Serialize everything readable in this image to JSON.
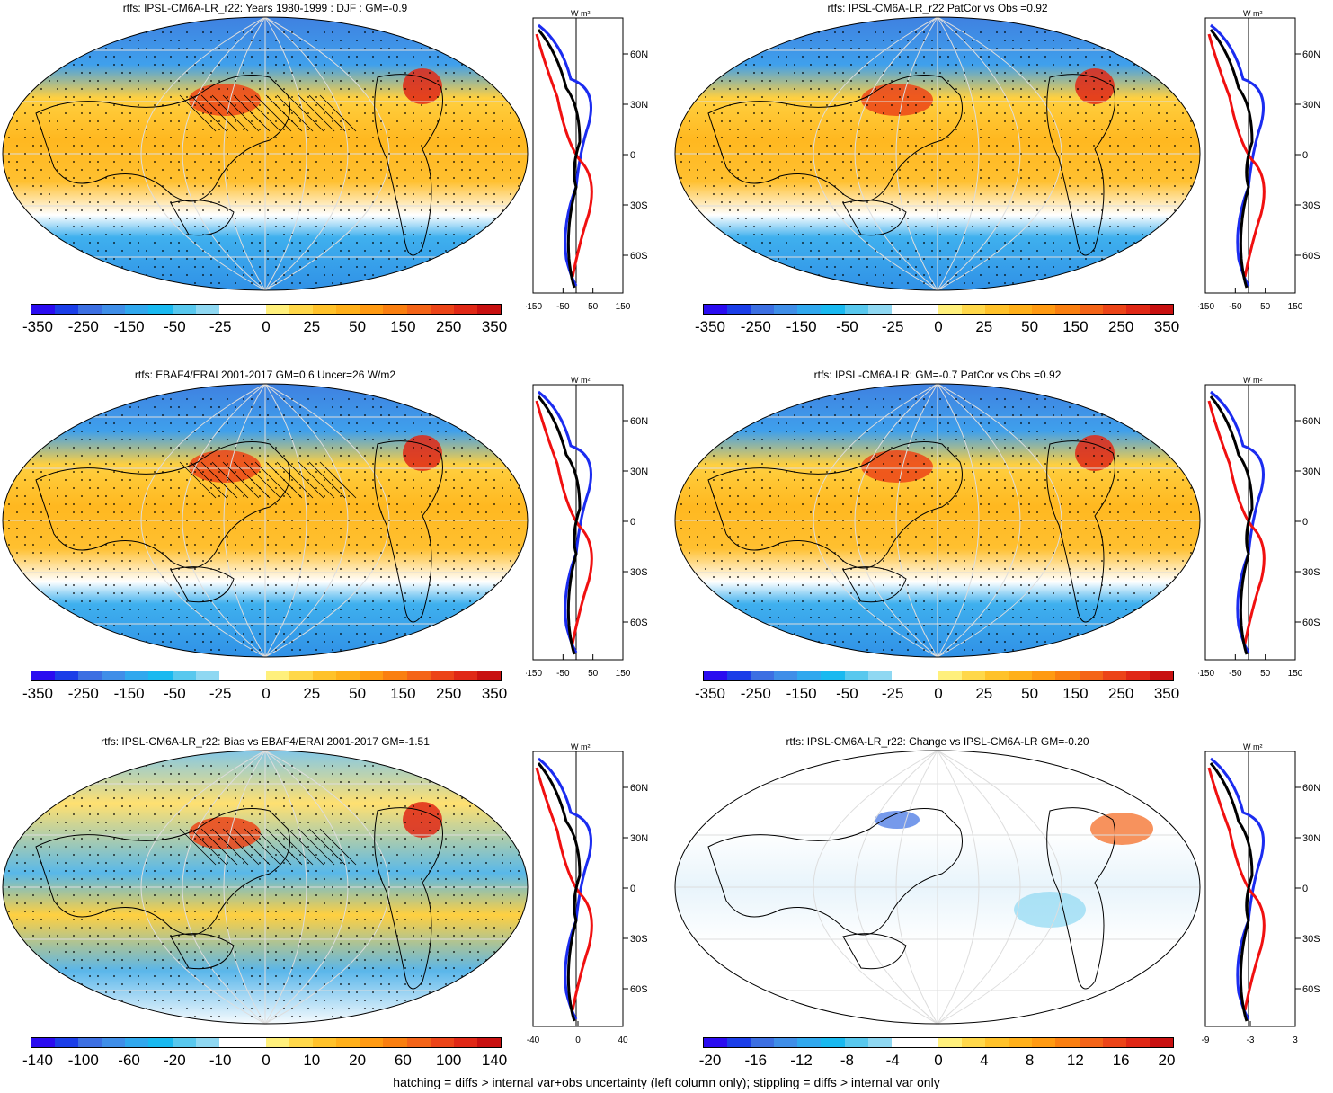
{
  "panels": [
    {
      "id": "top-left",
      "title": "rtfs: IPSL-CM6A-LR_r22: Years 1980-1999 : DJF : GM=-0.9",
      "colorbar_labels": [
        "-350",
        "-250",
        "-150",
        "-50",
        "-25",
        "0",
        "25",
        "50",
        "150",
        "250",
        "350"
      ],
      "zonal_ticks_x": [
        "-150",
        "-50",
        "50",
        "150"
      ],
      "zonal_ticks_y": [
        "60N",
        "30N",
        "0",
        "30S",
        "60S"
      ],
      "zonal_unit": "W m²",
      "hatching": true
    },
    {
      "id": "top-right",
      "title": "rtfs: IPSL-CM6A-LR_r22 PatCor vs Obs =0.92",
      "colorbar_labels": [
        "-350",
        "-250",
        "-150",
        "-50",
        "-25",
        "0",
        "25",
        "50",
        "150",
        "250",
        "350"
      ],
      "zonal_ticks_x": [
        "-150",
        "-50",
        "50",
        "150"
      ],
      "zonal_ticks_y": [
        "60N",
        "30N",
        "0",
        "30S",
        "60S"
      ],
      "zonal_unit": "W m²",
      "hatching": false
    },
    {
      "id": "mid-left",
      "title": "rtfs: EBAF4/ERAI 2001-2017 GM=0.6 Uncer=26 W/m2",
      "colorbar_labels": [
        "-350",
        "-250",
        "-150",
        "-50",
        "-25",
        "0",
        "25",
        "50",
        "150",
        "250",
        "350"
      ],
      "zonal_ticks_x": [
        "-150",
        "-50",
        "50",
        "150"
      ],
      "zonal_ticks_y": [
        "60N",
        "30N",
        "0",
        "30S",
        "60S"
      ],
      "zonal_unit": "W m²",
      "hatching": true
    },
    {
      "id": "mid-right",
      "title": "rtfs: IPSL-CM6A-LR: GM=-0.7 PatCor vs Obs =0.92",
      "colorbar_labels": [
        "-350",
        "-250",
        "-150",
        "-50",
        "-25",
        "0",
        "25",
        "50",
        "150",
        "250",
        "350"
      ],
      "zonal_ticks_x": [
        "-150",
        "-50",
        "50",
        "150"
      ],
      "zonal_ticks_y": [
        "60N",
        "30N",
        "0",
        "30S",
        "60S"
      ],
      "zonal_unit": "W m²",
      "hatching": false
    },
    {
      "id": "bottom-left",
      "title": "rtfs: IPSL-CM6A-LR_r22: Bias vs EBAF4/ERAI 2001-2017 GM=-1.51",
      "colorbar_labels": [
        "-140",
        "-100",
        "-60",
        "-20",
        "-10",
        "0",
        "10",
        "20",
        "60",
        "100",
        "140"
      ],
      "zonal_ticks_x": [
        "-40",
        "0",
        "40"
      ],
      "zonal_ticks_y": [
        "60N",
        "30N",
        "0",
        "30S",
        "60S"
      ],
      "zonal_unit": "W m²",
      "hatching": true
    },
    {
      "id": "bottom-right",
      "title": "rtfs: IPSL-CM6A-LR_r22: Change vs IPSL-CM6A-LR GM=-0.20",
      "colorbar_labels": [
        "-20",
        "-16",
        "-12",
        "-8",
        "-4",
        "0",
        "4",
        "8",
        "12",
        "16",
        "20"
      ],
      "zonal_ticks_x": [
        "-9",
        "-3",
        "3"
      ],
      "zonal_ticks_y": [
        "60N",
        "30N",
        "0",
        "30S",
        "60S"
      ],
      "zonal_unit": "W m²",
      "hatching": false
    }
  ],
  "colorbar_colors": [
    "#2a0cf0",
    "#1b3ee8",
    "#3c6fe2",
    "#3f8ee8",
    "#30a8ee",
    "#19b9f0",
    "#58c8ee",
    "#8fd8f2",
    "#ffffff",
    "#ffffff",
    "#fff07c",
    "#ffd84a",
    "#ffc22a",
    "#ffb01a",
    "#ff9a12",
    "#fa7f10",
    "#f46418",
    "#ec4418",
    "#e02816",
    "#c81010"
  ],
  "footer": "hatching = diffs > internal var+obs uncertainty (left column only); stippling = diffs > internal var only"
}
